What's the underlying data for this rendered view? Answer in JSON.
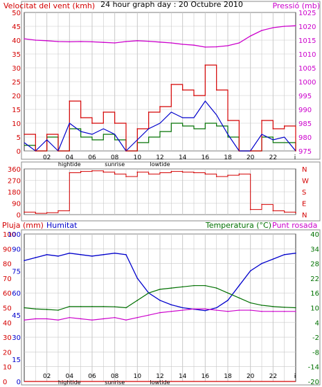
{
  "colors": {
    "wind": "#d40000",
    "pressure": "#cc00cc",
    "temperature": "#007000",
    "humidity": "#0000cc",
    "rain": "#d40000",
    "dewpoint": "#cc00cc",
    "grid": "#c8c8c8"
  },
  "x_ticks": [
    "02",
    "04",
    "06",
    "08",
    "10",
    "12",
    "14",
    "16",
    "18",
    "20",
    "22",
    "i"
  ],
  "x_annotations": [
    "hightide",
    "sunrise",
    "lowtide"
  ],
  "chart_data": [
    {
      "type": "line",
      "title": "24 hour graph day : 20 Octubre 2010",
      "ylabel": "Velocitat del vent (kmh)",
      "y2label": "Pressió (mb)",
      "ylim": [
        0,
        50
      ],
      "y_ticks": [
        0,
        5,
        10,
        15,
        20,
        25,
        30,
        35,
        40,
        45,
        50
      ],
      "y2lim": [
        975,
        1025
      ],
      "y2_ticks": [
        975,
        980,
        985,
        990,
        995,
        1000,
        1005,
        1010,
        1015,
        1020,
        1025
      ],
      "x": [
        0,
        1,
        2,
        3,
        4,
        5,
        6,
        7,
        8,
        9,
        10,
        11,
        12,
        13,
        14,
        15,
        16,
        17,
        18,
        19,
        20,
        21,
        22,
        23,
        24
      ],
      "series": [
        {
          "name": "Velocitat del vent (kmh)",
          "axis": "left",
          "style": "gust",
          "values": [
            6,
            0,
            6,
            0,
            18,
            12,
            10,
            14,
            10,
            0,
            8,
            14,
            16,
            24,
            22,
            20,
            31,
            22,
            11,
            0,
            0,
            11,
            8,
            9,
            0
          ]
        },
        {
          "name": "wind-average",
          "axis": "left",
          "style": "avg",
          "values": [
            3,
            0,
            4,
            0,
            10,
            7,
            6,
            8,
            6,
            0,
            4,
            8,
            10,
            14,
            12,
            12,
            18,
            13,
            6,
            0,
            0,
            6,
            4,
            5,
            0
          ]
        },
        {
          "name": "wind-direction-band",
          "axis": "left",
          "style": "band",
          "values": [
            2,
            0,
            5,
            0,
            8,
            5,
            4,
            6,
            4,
            0,
            3,
            5,
            7,
            10,
            9,
            8,
            10,
            9,
            5,
            0,
            0,
            5,
            3,
            3,
            0
          ]
        },
        {
          "name": "Pressió (mb)",
          "axis": "right",
          "values": [
            1015.5,
            1015,
            1014.8,
            1014.5,
            1014.4,
            1014.5,
            1014.4,
            1014.2,
            1014,
            1014.5,
            1014.8,
            1014.6,
            1014.3,
            1014,
            1013.5,
            1013.2,
            1012.5,
            1012.6,
            1013,
            1014,
            1016.5,
            1018.5,
            1019.5,
            1020,
            1020.2
          ]
        }
      ]
    },
    {
      "type": "line",
      "ylim": [
        0,
        360
      ],
      "y_ticks": [
        0,
        90,
        180,
        270,
        360
      ],
      "compass": [
        "N",
        "W",
        "S",
        "E",
        "N"
      ],
      "x": [
        0,
        1,
        2,
        3,
        4,
        5,
        6,
        7,
        8,
        9,
        10,
        11,
        12,
        13,
        14,
        15,
        16,
        17,
        18,
        19,
        20,
        21,
        22,
        23,
        24
      ],
      "series": [
        {
          "name": "wind-direction",
          "values": [
            20,
            10,
            15,
            30,
            330,
            340,
            345,
            335,
            320,
            300,
            335,
            320,
            330,
            340,
            335,
            330,
            320,
            300,
            310,
            320,
            40,
            80,
            30,
            20,
            15
          ]
        }
      ]
    },
    {
      "type": "line",
      "ylabel": "Pluja (mm)",
      "ylabel2": "Humitat",
      "y2label": "Temperatura (°C)",
      "y2label2": "Punt rosada",
      "rain_ticks": [
        0,
        10,
        20,
        30,
        40,
        50,
        60,
        70,
        80,
        90,
        100
      ],
      "humidity_ticks": [
        0,
        15,
        30,
        45,
        60,
        75,
        90,
        100
      ],
      "temp_ticks": [
        -20,
        -14,
        -8,
        -2,
        4,
        10,
        16,
        22,
        28,
        34,
        40
      ],
      "ylim": [
        0,
        100
      ],
      "y2lim": [
        -20,
        40
      ],
      "x": [
        0,
        1,
        2,
        3,
        4,
        5,
        6,
        7,
        8,
        9,
        10,
        11,
        12,
        13,
        14,
        15,
        16,
        17,
        18,
        19,
        20,
        21,
        22,
        23,
        24
      ],
      "series": [
        {
          "name": "Pluja (mm)",
          "axis": "left",
          "values": [
            0,
            0,
            0,
            0,
            0,
            0,
            0,
            0,
            0,
            0,
            0,
            0,
            0,
            0,
            0,
            0,
            0,
            0,
            0,
            0,
            0,
            0,
            0,
            0,
            0
          ]
        },
        {
          "name": "Humitat",
          "axis": "humidity",
          "values": [
            82,
            84,
            86,
            85,
            87,
            86,
            85,
            86,
            87,
            86,
            70,
            60,
            55,
            52,
            50,
            49,
            48,
            50,
            55,
            65,
            75,
            80,
            83,
            86,
            87
          ]
        },
        {
          "name": "Temperatura (°C)",
          "axis": "right",
          "values": [
            10,
            9.5,
            9.3,
            9,
            10.5,
            10.5,
            10.5,
            10.5,
            10.4,
            10,
            13,
            16,
            17.5,
            18,
            18.5,
            19,
            19,
            18,
            16,
            14,
            12,
            11,
            10.5,
            10.2,
            10
          ]
        },
        {
          "name": "Punt rosada",
          "axis": "right",
          "values": [
            5,
            5.5,
            5.5,
            5,
            6,
            5.5,
            5,
            5.5,
            6,
            5,
            6,
            7,
            8,
            8.5,
            9,
            9.5,
            9.5,
            9,
            8.5,
            9,
            9,
            8.5,
            8.5,
            8.5,
            8.5
          ]
        }
      ]
    }
  ]
}
